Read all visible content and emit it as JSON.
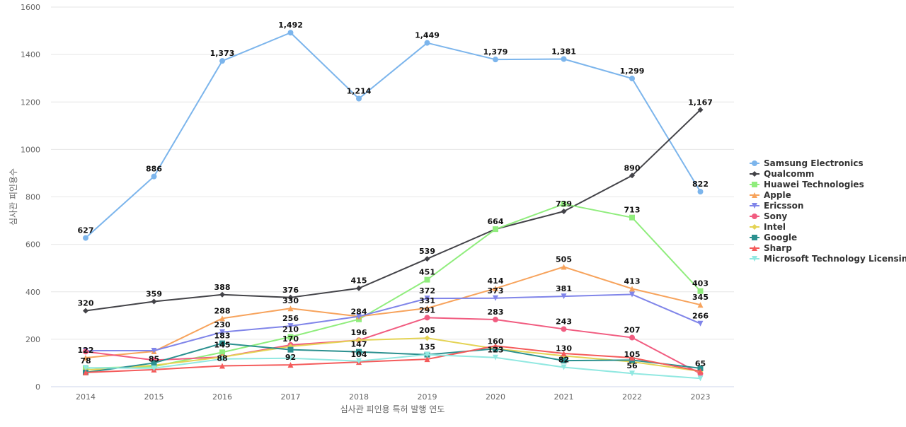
{
  "chart_data": {
    "type": "line",
    "title": "",
    "xlabel": "심사관 피인용 특허 발행 연도",
    "ylabel": "심사관 피인용수",
    "x": [
      "2014",
      "2015",
      "2016",
      "2017",
      "2018",
      "2019",
      "2020",
      "2021",
      "2022",
      "2023"
    ],
    "ylim": [
      0,
      1600
    ],
    "yticks": [
      0,
      200,
      400,
      600,
      800,
      1000,
      1200,
      1400,
      1600
    ],
    "grid": true,
    "legend_position": "right",
    "series": [
      {
        "name": "Samsung Electronics",
        "color": "#7cb5ec",
        "marker": "circle",
        "values": [
          627,
          886,
          1373,
          1492,
          1214,
          1449,
          1379,
          1381,
          1299,
          822
        ],
        "labels": [
          "627",
          "886",
          "1,373",
          "1,492",
          "1,214",
          "1,449",
          "1,379",
          "1,381",
          "1,299",
          "822"
        ]
      },
      {
        "name": "Qualcomm",
        "color": "#434348",
        "marker": "diamond",
        "values": [
          320,
          359,
          388,
          376,
          415,
          539,
          664,
          739,
          890,
          1167
        ],
        "labels": [
          "320",
          "359",
          "388",
          "376",
          "415",
          "539",
          "664",
          "739",
          "890",
          "1,167"
        ]
      },
      {
        "name": "Huawei Technologies",
        "color": "#90ed7d",
        "marker": "square",
        "values": [
          78,
          85,
          145,
          210,
          284,
          451,
          664,
          770,
          713,
          403
        ],
        "labels": [
          "78",
          "85",
          "145",
          "210",
          "284",
          "451",
          "",
          "",
          "713",
          "403"
        ]
      },
      {
        "name": "Apple",
        "color": "#f7a35c",
        "marker": "triangle",
        "values": [
          122,
          149,
          288,
          330,
          296,
          331,
          414,
          505,
          413,
          345
        ],
        "labels": [
          "122",
          "",
          "288",
          "330",
          "",
          "331",
          "414",
          "505",
          "413",
          "345"
        ]
      },
      {
        "name": "Ericsson",
        "color": "#8085e9",
        "marker": "triangle-down",
        "values": [
          152,
          152,
          230,
          256,
          296,
          372,
          373,
          381,
          389,
          266
        ],
        "labels": [
          "",
          "",
          "230",
          "256",
          "",
          "372",
          "373",
          "381",
          "",
          "266"
        ]
      },
      {
        "name": "Sony",
        "color": "#f15c80",
        "marker": "circle",
        "values": [
          148,
          112,
          125,
          176,
          196,
          291,
          283,
          243,
          207,
          55
        ],
        "labels": [
          "",
          "",
          "",
          "",
          "196",
          "291",
          "283",
          "243",
          "207",
          ""
        ]
      },
      {
        "name": "Intel",
        "color": "#e4d354",
        "marker": "diamond",
        "values": [
          70,
          90,
          125,
          170,
          196,
          205,
          160,
          130,
          105,
          65
        ],
        "labels": [
          "",
          "",
          "",
          "170",
          "",
          "205",
          "160",
          "130",
          "105",
          "65"
        ]
      },
      {
        "name": "Google",
        "color": "#2b908f",
        "marker": "square",
        "values": [
          60,
          100,
          183,
          156,
          147,
          135,
          160,
          110,
          112,
          78
        ],
        "labels": [
          "",
          "",
          "183",
          "",
          "147",
          "135",
          "",
          "",
          "",
          ""
        ]
      },
      {
        "name": "Sharp",
        "color": "#f45b5b",
        "marker": "triangle",
        "values": [
          60,
          72,
          88,
          92,
          104,
          116,
          172,
          140,
          122,
          65
        ],
        "labels": [
          "",
          "",
          "88",
          "92",
          "104",
          "",
          "",
          "",
          "",
          ""
        ]
      },
      {
        "name": "Microsoft Technology Licensing",
        "color": "#91e8e1",
        "marker": "triangle-down",
        "values": [
          80,
          78,
          117,
          120,
          108,
          135,
          123,
          82,
          56,
          35
        ],
        "labels": [
          "",
          "",
          "",
          "",
          "",
          "",
          "123",
          "82",
          "56",
          ""
        ]
      }
    ]
  }
}
